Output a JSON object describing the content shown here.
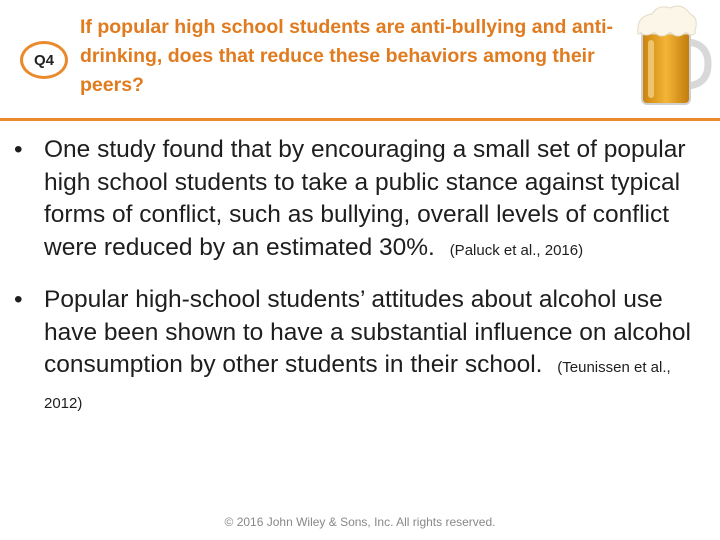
{
  "badge": {
    "label": "Q4"
  },
  "question": "If popular high school students are anti-bullying and anti-drinking, does that reduce these behaviors among their peers?",
  "image": {
    "icon": "beer-mug-icon"
  },
  "colors": {
    "accent": "#ea8a2c",
    "title": "#e07b1f",
    "text": "#1e1e1e"
  },
  "bullets": [
    {
      "text": "One study found that by encouraging a small set of popular high school students to take a public stance against typical forms of conflict, such as bullying, overall levels of conflict were reduced by an estimated 30%.",
      "citation": "(Paluck et al., 2016)"
    },
    {
      "text": "Popular high-school students’ attitudes about alcohol use have been shown to have a substantial influence on alcohol consumption by other students in their school.",
      "citation": "(Teunissen et al., 2012)"
    }
  ],
  "footer": {
    "copyright": "© 2016 John Wiley & Sons, Inc. All rights reserved."
  }
}
